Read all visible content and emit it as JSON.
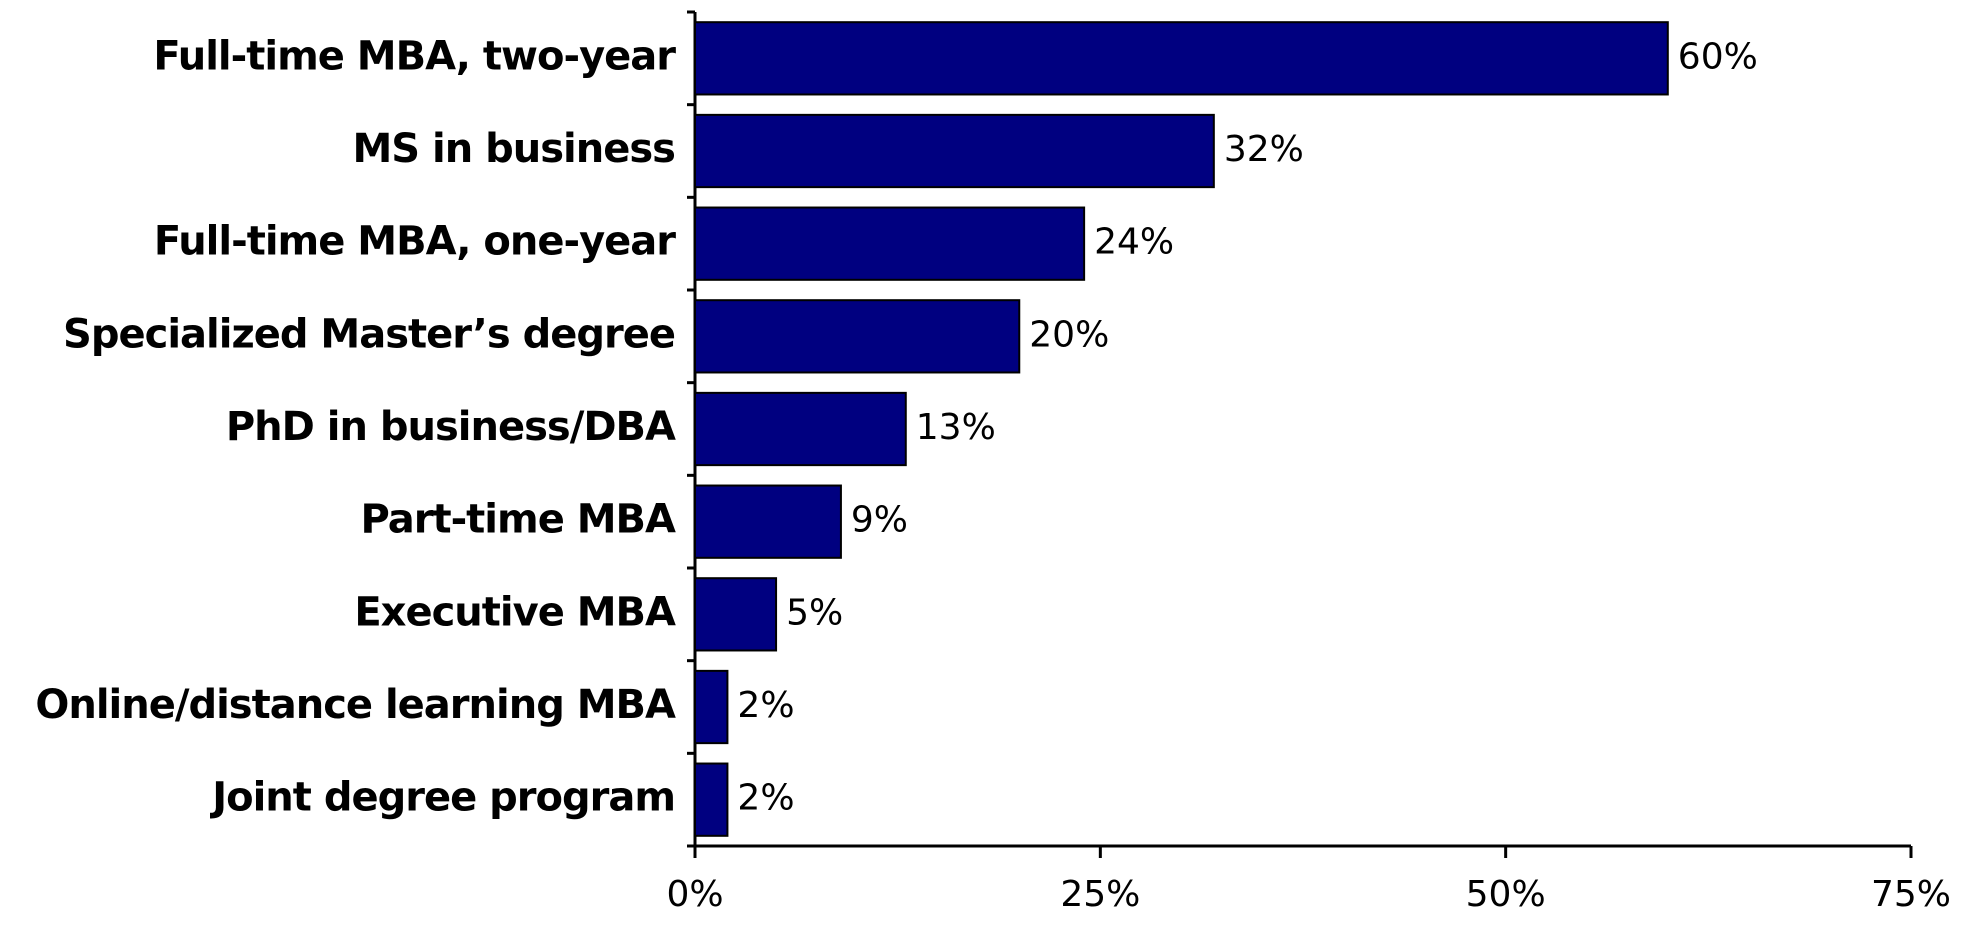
{
  "chart_data": {
    "type": "bar",
    "orientation": "horizontal",
    "categories": [
      "Full-time MBA, two-year",
      "MS in business",
      "Full-time MBA, one-year",
      "Specialized Master’s degree",
      "PhD in business/DBA",
      "Part-time MBA",
      "Executive MBA",
      "Online/distance learning MBA",
      "Joint degree program"
    ],
    "values": [
      60,
      32,
      24,
      20,
      13,
      9,
      5,
      2,
      2
    ],
    "value_labels": [
      "60%",
      "32%",
      "24%",
      "20%",
      "13%",
      "9%",
      "5%",
      "2%",
      "2%"
    ],
    "color": "#000080",
    "xlim": [
      0,
      75
    ],
    "xticks": [
      {
        "value": 0,
        "label": "0%"
      },
      {
        "value": 25,
        "label": "25%"
      },
      {
        "value": 50,
        "label": "50%"
      },
      {
        "value": 75,
        "label": "75%"
      }
    ]
  }
}
